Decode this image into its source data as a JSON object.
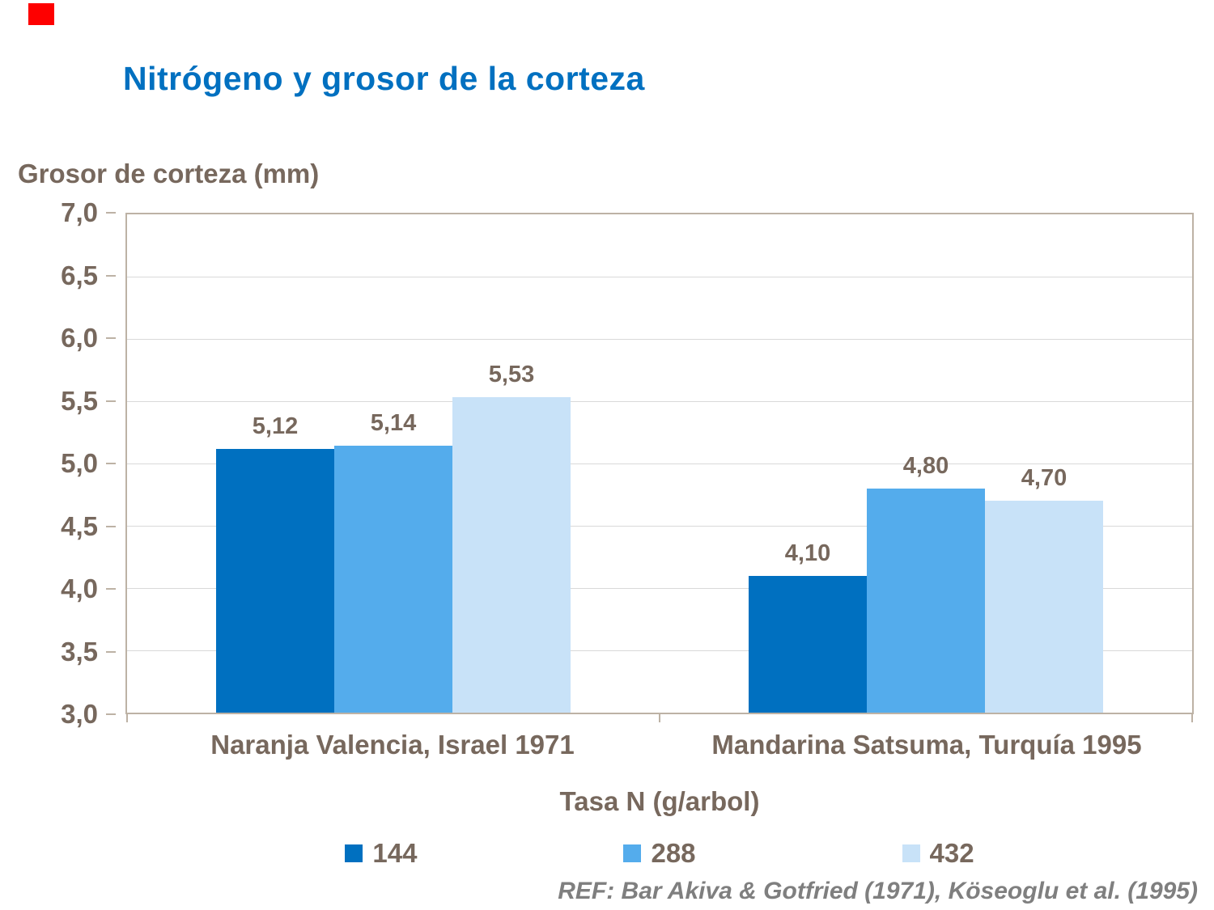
{
  "page": {
    "title": "Nitrógeno y grosor de la corteza",
    "ref": "REF: Bar Akiva & Gotfried (1971), Köseoglu et al. (1995)"
  },
  "colors": {
    "title": "#0070C0",
    "text": "#77685D",
    "accent_bar": "#FE0000",
    "plot_border": "#BDB2A5",
    "gridline": "#D9D9D9"
  },
  "chart_data": {
    "type": "bar",
    "title": "Nitrógeno y grosor de la corteza",
    "ylabel": "Grosor de corteza (mm)",
    "xlabel": "Tasa N (g/arbol)",
    "ylim": [
      3.0,
      7.0
    ],
    "ytick_step": 0.5,
    "ytick_labels": [
      "7,0",
      "6,5",
      "6,0",
      "5,5",
      "5,0",
      "4,5",
      "4,0",
      "3,5",
      "3,0"
    ],
    "grid": true,
    "legend_position": "bottom",
    "categories": [
      "Naranja Valencia, Israel 1971",
      "Mandarina Satsuma, Turquía 1995"
    ],
    "series": [
      {
        "name": "144",
        "color": "#0070C0",
        "values": [
          5.12,
          4.1
        ],
        "labels": [
          "5,12",
          "4,10"
        ]
      },
      {
        "name": "288",
        "color": "#54ACEC",
        "values": [
          5.14,
          4.8
        ],
        "labels": [
          "5,14",
          "4,80"
        ]
      },
      {
        "name": "432",
        "color": "#C8E2F8",
        "values": [
          5.53,
          4.7
        ],
        "labels": [
          "5,53",
          "4,70"
        ]
      }
    ]
  }
}
